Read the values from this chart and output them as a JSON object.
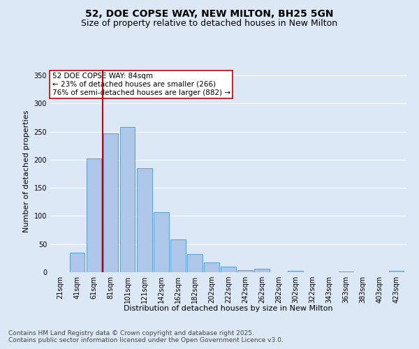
{
  "title_line1": "52, DOE COPSE WAY, NEW MILTON, BH25 5GN",
  "title_line2": "Size of property relative to detached houses in New Milton",
  "xlabel": "Distribution of detached houses by size in New Milton",
  "ylabel": "Number of detached properties",
  "categories": [
    "21sqm",
    "41sqm",
    "61sqm",
    "81sqm",
    "101sqm",
    "121sqm",
    "142sqm",
    "162sqm",
    "182sqm",
    "202sqm",
    "222sqm",
    "242sqm",
    "262sqm",
    "282sqm",
    "302sqm",
    "322sqm",
    "343sqm",
    "363sqm",
    "383sqm",
    "403sqm",
    "423sqm"
  ],
  "values": [
    0,
    35,
    202,
    247,
    258,
    185,
    107,
    58,
    32,
    18,
    10,
    4,
    6,
    0,
    2,
    0,
    0,
    1,
    0,
    0,
    2
  ],
  "bar_color": "#aec6e8",
  "bar_edge_color": "#5a9fd4",
  "vline_index": 3,
  "vline_color": "#cc0000",
  "annotation_text": "52 DOE COPSE WAY: 84sqm\n← 23% of detached houses are smaller (266)\n76% of semi-detached houses are larger (882) →",
  "annotation_box_color": "#ffffff",
  "annotation_box_edge": "#cc0000",
  "ylim": [
    0,
    360
  ],
  "yticks": [
    0,
    50,
    100,
    150,
    200,
    250,
    300,
    350
  ],
  "background_color": "#dce8f5",
  "grid_color": "#ffffff",
  "footer_line1": "Contains HM Land Registry data © Crown copyright and database right 2025.",
  "footer_line2": "Contains public sector information licensed under the Open Government Licence v3.0.",
  "title_fontsize": 10,
  "subtitle_fontsize": 9,
  "axis_label_fontsize": 8,
  "tick_fontsize": 7,
  "annotation_fontsize": 7.5,
  "footer_fontsize": 6.5
}
